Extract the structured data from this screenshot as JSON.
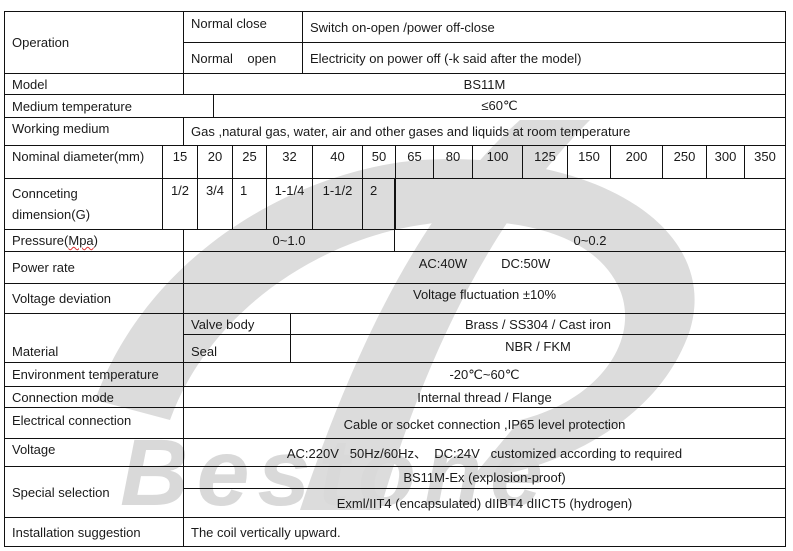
{
  "watermark": {
    "text": "Bestone",
    "color": "#d9d9d9"
  },
  "operation": {
    "label": "Operation",
    "normal_close": "Normal close",
    "normal_close_desc": "Switch on-open /power off-close",
    "normal_open": "Normal    open",
    "normal_open_desc": "Electricity on power off (-k said after the model)"
  },
  "model": {
    "label": "Model",
    "value": "BS11M"
  },
  "medium_temperature": {
    "label": "Medium temperature",
    "value": "≤60℃"
  },
  "working_medium": {
    "label": "Working medium",
    "value": "Gas ,natural gas, water, air and other gases and liquids at room temperature"
  },
  "nominal_diameter": {
    "label": "Nominal diameter(mm)",
    "values": [
      "15",
      "20",
      "25",
      "32",
      "40",
      "50",
      "65",
      "80",
      "100",
      "125",
      "150",
      "200",
      "250",
      "300",
      "350"
    ]
  },
  "connecting_dimension": {
    "label_line1": "Connceting",
    "label_line2": "dimension(G)",
    "values": [
      "1/2",
      "3/4",
      "1",
      "1-1/4",
      "1-1/2",
      "2"
    ]
  },
  "pressure": {
    "label_prefix": "Pressure(",
    "label_unit": "Mpa",
    "label_suffix": ")",
    "low": "0~1.0",
    "high": "0~0.2"
  },
  "power_rate": {
    "label": "Power rate",
    "ac": "AC:40W",
    "dc": "DC:50W"
  },
  "voltage_deviation": {
    "label": "Voltage deviation",
    "value": "Voltage fluctuation ±10%"
  },
  "material": {
    "label": "Material",
    "valve_body_label": "Valve body",
    "valve_body": "Brass / SS304 / Cast iron",
    "seal_label": "Seal",
    "seal": "NBR / FKM"
  },
  "environment_temperature": {
    "label": "Environment temperature",
    "value": "-20℃~60℃"
  },
  "connection_mode": {
    "label": "Connection mode",
    "value": "Internal thread / Flange"
  },
  "electrical_connection": {
    "label": "Electrical connection",
    "value": "Cable or socket connection ,IP65 level protection"
  },
  "voltage": {
    "label": "Voltage",
    "value": "AC:220V   50Hz/60Hz、  DC:24V   customized according to required"
  },
  "special_selection": {
    "label": "Special selection",
    "option1": "BS11M-Ex (explosion-proof)",
    "option2": "Exml/IIT4 (encapsulated) dIIBT4 dIICT5 (hydrogen)"
  },
  "installation": {
    "label": "Installation suggestion",
    "value": "The coil vertically upward."
  }
}
